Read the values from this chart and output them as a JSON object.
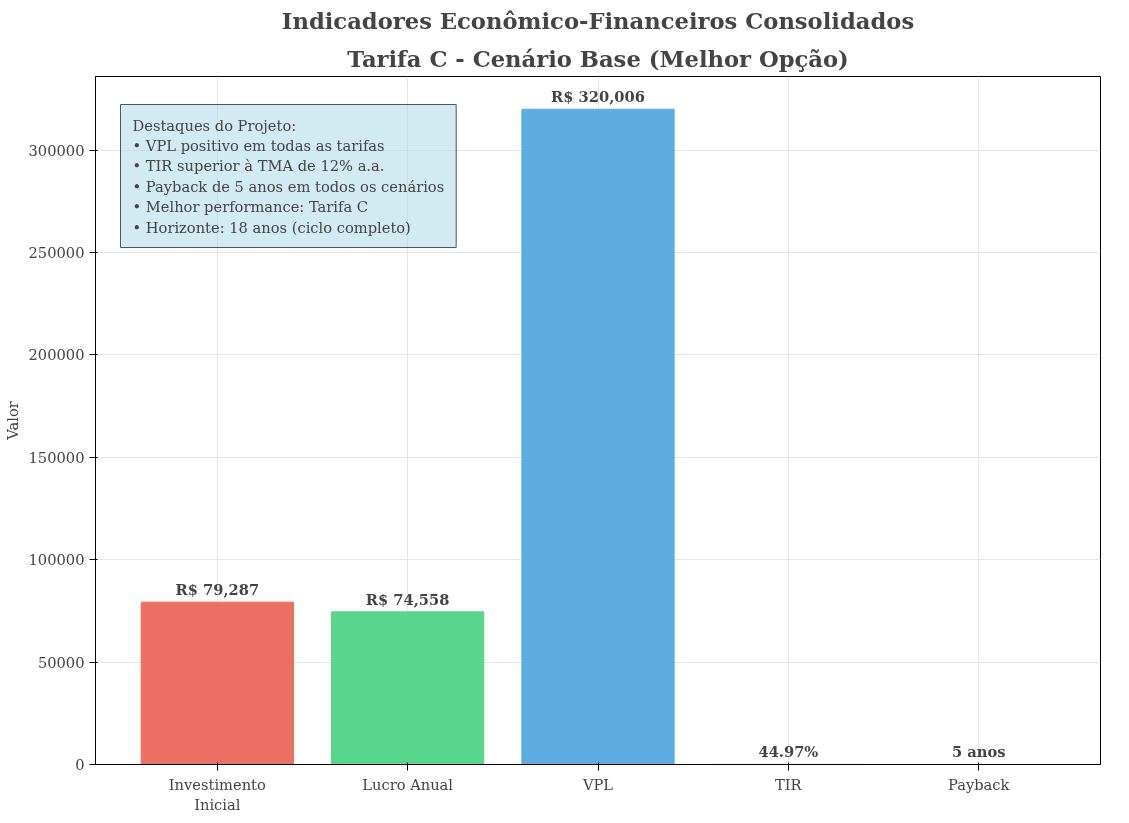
{
  "chart_data": {
    "type": "bar",
    "title": "Indicadores Econômico-Financeiros Consolidados",
    "subtitle": "Tarifa C - Cenário Base (Melhor Opção)",
    "ylabel": "Valor",
    "categories": [
      "Investimento\nInicial",
      "Lucro Anual",
      "VPL",
      "TIR",
      "Payback"
    ],
    "values": [
      79287,
      74558,
      320006,
      44.97,
      5
    ],
    "value_labels": [
      "R$ 79,287",
      "R$ 74,558",
      "R$ 320,006",
      "44.97%",
      "5 anos"
    ],
    "colors": [
      "#eb6f62",
      "#58d68d",
      "#5dade2",
      "#b07cc6",
      "#f5b041"
    ],
    "ylim": [
      0,
      336000
    ],
    "yticks": [
      0,
      50000,
      100000,
      150000,
      200000,
      250000,
      300000
    ],
    "grid": true,
    "annotations": [
      "Destaques do Projeto:\n• VPL positivo em todas as tarifas\n• TIR superior à TMA de 12% a.a.\n• Payback de 5 anos em todos os cenários\n• Melhor performance: Tarifa C\n• Horizonte: 18 anos (ciclo completo)"
    ]
  }
}
